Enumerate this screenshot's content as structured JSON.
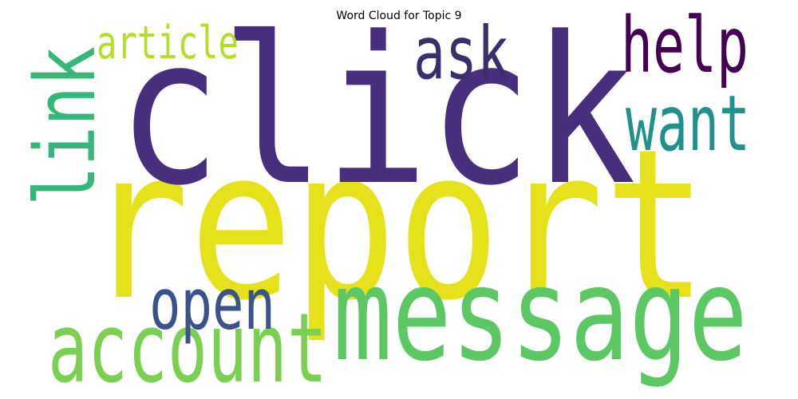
{
  "chart_data": {
    "type": "wordcloud",
    "title": "Word Cloud for Topic 9",
    "words": [
      {
        "text": "report",
        "weight": 1.0,
        "color": "#e5e11a"
      },
      {
        "text": "click",
        "weight": 0.98,
        "color": "#472f7d"
      },
      {
        "text": "message",
        "weight": 0.62,
        "color": "#5cc863"
      },
      {
        "text": "account",
        "weight": 0.46,
        "color": "#7ad151"
      },
      {
        "text": "link",
        "weight": 0.4,
        "color": "#35b779"
      },
      {
        "text": "help",
        "weight": 0.37,
        "color": "#440154"
      },
      {
        "text": "want",
        "weight": 0.37,
        "color": "#21918c"
      },
      {
        "text": "ask",
        "weight": 0.35,
        "color": "#3b2f6b"
      },
      {
        "text": "open",
        "weight": 0.34,
        "color": "#3b528b"
      },
      {
        "text": "article",
        "weight": 0.22,
        "color": "#b5de2b"
      }
    ]
  }
}
